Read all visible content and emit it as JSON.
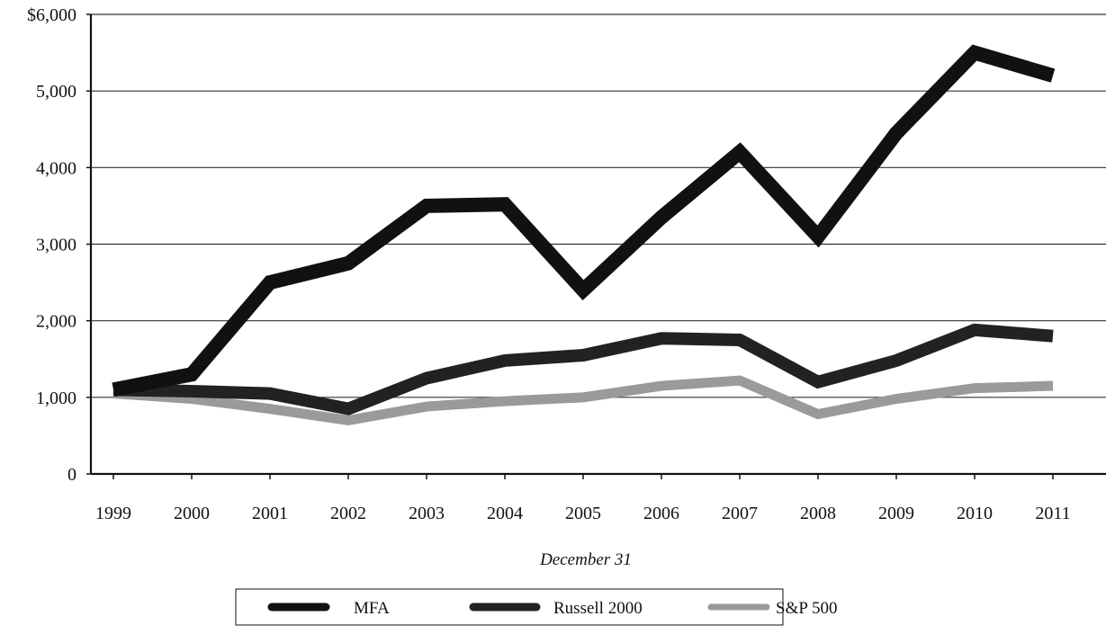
{
  "chart_data": {
    "type": "line",
    "title": "",
    "xlabel": "December 31",
    "ylabel": "",
    "categories": [
      "1999",
      "2000",
      "2001",
      "2002",
      "2003",
      "2004",
      "2005",
      "2006",
      "2007",
      "2008",
      "2009",
      "2010",
      "2011"
    ],
    "y_ticks": [
      "0",
      "1,000",
      "2,000",
      "3,000",
      "4,000",
      "5,000",
      "$6,000"
    ],
    "ylim": [
      0,
      6000
    ],
    "grid": true,
    "legend_position": "bottom",
    "series": [
      {
        "name": "MFA",
        "color": "#111111",
        "values": [
          1100,
          1300,
          2500,
          2750,
          3500,
          3520,
          2400,
          3350,
          4200,
          3100,
          4450,
          5500,
          5200
        ]
      },
      {
        "name": "Russell 2000",
        "color": "#222222",
        "values": [
          1100,
          1080,
          1050,
          850,
          1250,
          1480,
          1550,
          1770,
          1750,
          1200,
          1480,
          1880,
          1800
        ]
      },
      {
        "name": "S&P 500",
        "color": "#9a9a9a",
        "values": [
          1050,
          980,
          850,
          700,
          880,
          950,
          1000,
          1150,
          1220,
          780,
          980,
          1120,
          1150
        ]
      }
    ]
  }
}
